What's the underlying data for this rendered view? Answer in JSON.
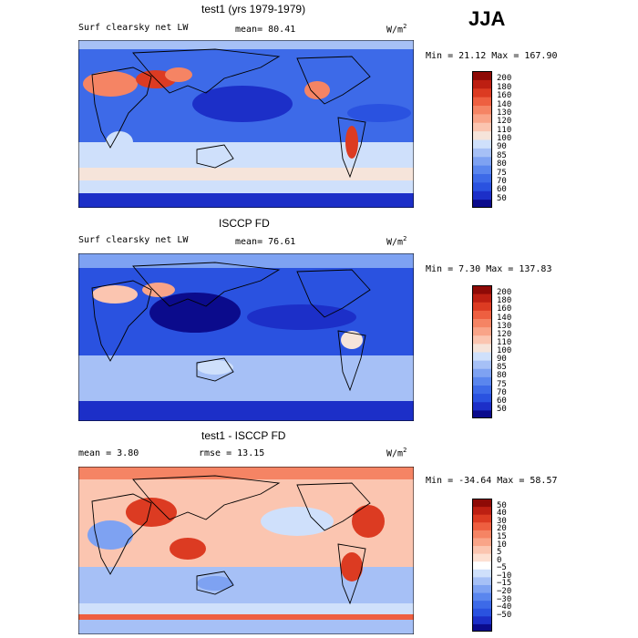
{
  "season": "JJA",
  "colors": {
    "bar_scale": [
      "#0b0b8c",
      "#1c2fc8",
      "#2a52e0",
      "#3d6ae8",
      "#5a86ee",
      "#7ea2f2",
      "#a6c0f6",
      "#cfe0fb",
      "#f6e4da",
      "#fbc5b0",
      "#f9a488",
      "#f58464",
      "#ee5f40",
      "#dc3b22",
      "#bd1f12",
      "#8e0a06"
    ],
    "diff_scale": [
      "#0b0b8c",
      "#1c2fc8",
      "#2a52e0",
      "#3d6ae8",
      "#5a86ee",
      "#7ea2f2",
      "#a6c0f6",
      "#cfe0fb",
      "#ffffff",
      "#fde0d2",
      "#fbc5b0",
      "#f9a488",
      "#f58464",
      "#ee5f40",
      "#dc3b22",
      "#bd1f12",
      "#8e0a06"
    ],
    "land": "#2b2b2b"
  },
  "chart_data": [
    {
      "type": "heatmap",
      "id": "panel1",
      "title": "test1 (yrs 1979-1979)",
      "variable": "Surf clearsky net LW",
      "mean_label": "mean=",
      "mean_value": "80.41",
      "units": "W/m2",
      "stats_text": "Min =  21.12 Max = 167.90",
      "colorbar_levels": [
        "200",
        "180",
        "160",
        "140",
        "130",
        "120",
        "110",
        "100",
        "90",
        "85",
        "80",
        "75",
        "70",
        "60",
        "50"
      ]
    },
    {
      "type": "heatmap",
      "id": "panel2",
      "title": "ISCCP FD",
      "variable": "Surf clearsky net LW",
      "mean_label": "mean=",
      "mean_value": "76.61",
      "units": "W/m2",
      "stats_text": "Min =   7.30 Max = 137.83",
      "colorbar_levels": [
        "200",
        "180",
        "160",
        "140",
        "130",
        "120",
        "110",
        "100",
        "90",
        "85",
        "80",
        "75",
        "70",
        "60",
        "50"
      ]
    },
    {
      "type": "heatmap",
      "id": "panel3",
      "title": "test1 - ISCCP FD",
      "mean_label": "mean =",
      "mean_value": "3.80",
      "rmse_label": "rmse =",
      "rmse_value": "13.15",
      "units": "W/m2",
      "stats_text": "Min = -34.64 Max =  58.57",
      "colorbar_levels": [
        "50",
        "40",
        "30",
        "20",
        "15",
        "10",
        "5",
        "0",
        "−5",
        "−10",
        "−15",
        "−20",
        "−30",
        "−40",
        "−50"
      ]
    }
  ]
}
